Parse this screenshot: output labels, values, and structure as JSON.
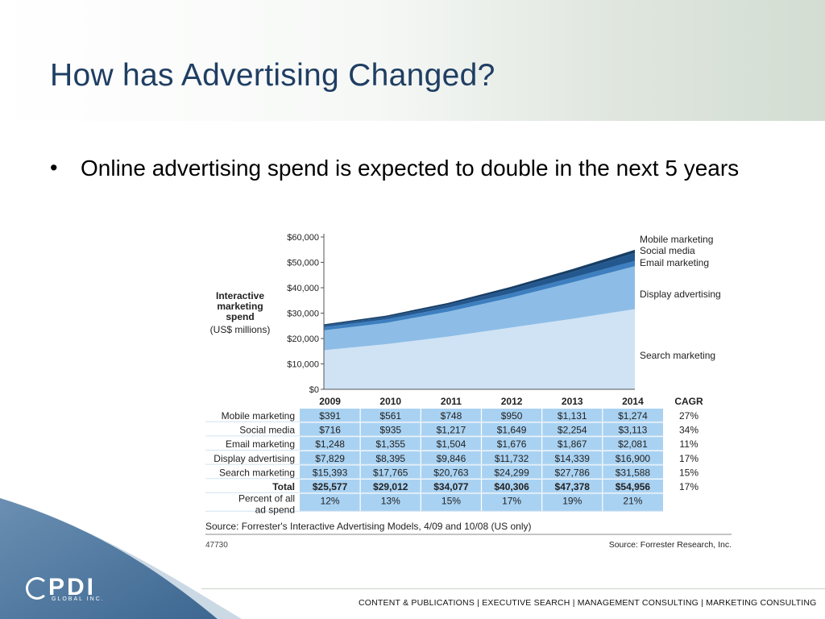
{
  "slide": {
    "title": "How has Advertising Changed?",
    "bullet": "Online advertising spend is expected to double in the next 5 years",
    "logo_main": "PDI",
    "logo_sub": "GLOBAL INC.",
    "footer": "CONTENT & PUBLICATIONS  |  EXECUTIVE SEARCH  |  MANAGEMENT CONSULTING  |  MARKETING CONSULTING"
  },
  "chart_data": {
    "type": "area",
    "stacked": true,
    "y_title_lines": [
      "Interactive",
      "marketing",
      "spend"
    ],
    "y_unit": "(US$ millions)",
    "ylim": [
      0,
      60000
    ],
    "yticks": [
      "$0",
      "$10,000",
      "$20,000",
      "$30,000",
      "$40,000",
      "$50,000",
      "$60,000"
    ],
    "years": [
      "2009",
      "2010",
      "2011",
      "2012",
      "2013",
      "2014"
    ],
    "series": [
      {
        "name": "Search marketing",
        "values": [
          15393,
          17765,
          20763,
          24299,
          27786,
          31588
        ],
        "color": "#cfe3f5"
      },
      {
        "name": "Display advertising",
        "values": [
          7829,
          8395,
          9846,
          11732,
          14339,
          16900
        ],
        "color": "#8dbde6"
      },
      {
        "name": "Email marketing",
        "values": [
          1248,
          1355,
          1504,
          1676,
          1867,
          2081
        ],
        "color": "#3d7fc0"
      },
      {
        "name": "Social media",
        "values": [
          716,
          935,
          1217,
          1649,
          2254,
          3113
        ],
        "color": "#23588f"
      },
      {
        "name": "Mobile marketing",
        "values": [
          391,
          561,
          748,
          950,
          1131,
          1274
        ],
        "color": "#173e66"
      }
    ],
    "table": {
      "cagr_header": "CAGR",
      "rows": [
        {
          "label": "Mobile marketing",
          "cells": [
            "$391",
            "$561",
            "$748",
            "$950",
            "$1,131",
            "$1,274"
          ],
          "cagr": "27%"
        },
        {
          "label": "Social media",
          "cells": [
            "$716",
            "$935",
            "$1,217",
            "$1,649",
            "$2,254",
            "$3,113"
          ],
          "cagr": "34%"
        },
        {
          "label": "Email marketing",
          "cells": [
            "$1,248",
            "$1,355",
            "$1,504",
            "$1,676",
            "$1,867",
            "$2,081"
          ],
          "cagr": "11%"
        },
        {
          "label": "Display advertising",
          "cells": [
            "$7,829",
            "$8,395",
            "$9,846",
            "$11,732",
            "$14,339",
            "$16,900"
          ],
          "cagr": "17%"
        },
        {
          "label": "Search marketing",
          "cells": [
            "$15,393",
            "$17,765",
            "$20,763",
            "$24,299",
            "$27,786",
            "$31,588"
          ],
          "cagr": "15%"
        },
        {
          "label": "Total",
          "cells": [
            "$25,577",
            "$29,012",
            "$34,077",
            "$40,306",
            "$47,378",
            "$54,956"
          ],
          "cagr": "17%",
          "bold": true
        },
        {
          "label_lines": [
            "Percent of all",
            "ad spend"
          ],
          "cells": [
            "12%",
            "13%",
            "15%",
            "17%",
            "19%",
            "21%"
          ],
          "cagr": ""
        }
      ]
    },
    "source_note": "Source: Forrester's Interactive Advertising Models, 4/09 and 10/08 (US only)",
    "figure_id": "47730",
    "source_right": "Source: Forrester Research, Inc."
  }
}
